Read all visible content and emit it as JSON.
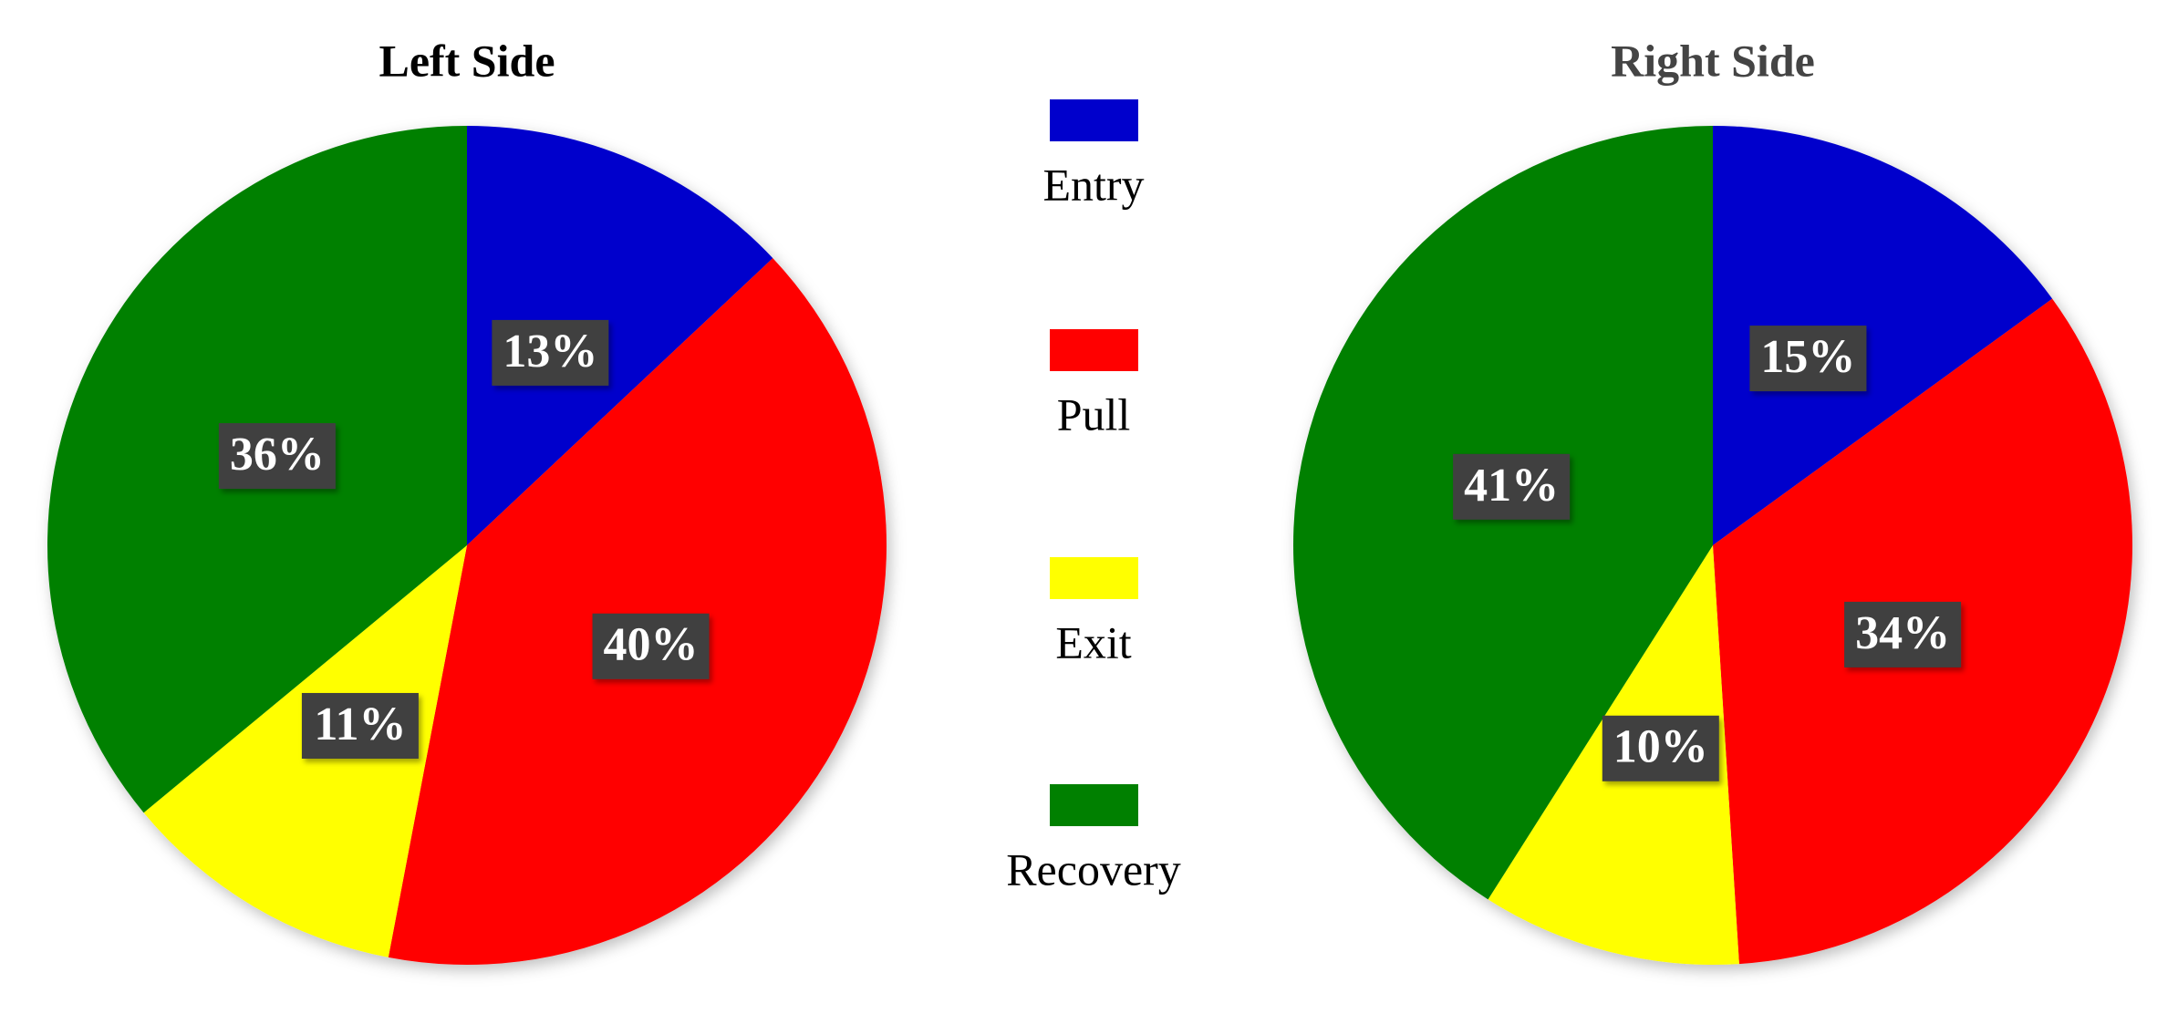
{
  "legend": {
    "categories": [
      "Entry",
      "Pull",
      "Exit",
      "Recovery"
    ],
    "colors": [
      "#0000cc",
      "#ff0000",
      "#ffff00",
      "#008000"
    ]
  },
  "chart_data": [
    {
      "type": "pie",
      "title": "Left Side",
      "values": [
        13,
        40,
        11,
        36
      ],
      "value_labels": [
        "13%",
        "40%",
        "11%",
        "36%"
      ]
    },
    {
      "type": "pie",
      "title": "Right Side",
      "values": [
        15,
        34,
        10,
        41
      ],
      "value_labels": [
        "15%",
        "34%",
        "10%",
        "41%"
      ]
    }
  ]
}
